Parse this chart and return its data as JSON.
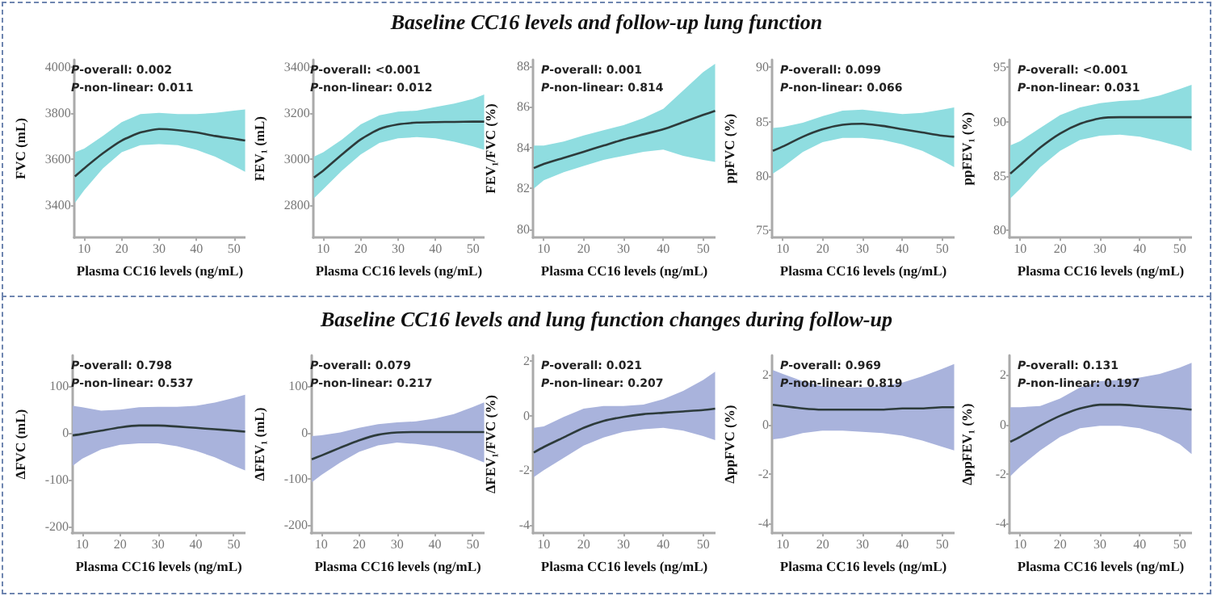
{
  "chart_data": [
    {
      "type": "line",
      "xlabel": "Plasma CC16 levels (ng/mL)",
      "ylabel": "FVC (mL)",
      "annotations": [
        "P-overall: 0.002",
        "P-non-linear: 0.011"
      ],
      "x": [
        7.5,
        10,
        15,
        20,
        25,
        30,
        35,
        40,
        45,
        50,
        53
      ],
      "xlim": [
        7.3,
        53.1
      ],
      "xticks": [
        10,
        20,
        30,
        40,
        50
      ],
      "ylim": [
        3260,
        4030
      ],
      "yticks": [
        3400,
        3600,
        3800,
        4000
      ],
      "colors": [
        "#8fdde0"
      ],
      "series": [
        {
          "color": "#2d3b3b",
          "values": [
            3525,
            3560,
            3625,
            3680,
            3715,
            3730,
            3725,
            3715,
            3700,
            3688,
            3680
          ],
          "lower": [
            3410,
            3465,
            3560,
            3630,
            3660,
            3665,
            3660,
            3640,
            3610,
            3570,
            3545
          ],
          "upper": [
            3630,
            3645,
            3700,
            3760,
            3795,
            3800,
            3795,
            3795,
            3800,
            3810,
            3815
          ]
        }
      ]
    },
    {
      "type": "line",
      "xlabel": "Plasma CC16 levels (ng/mL)",
      "ylabel": "FEV₁ (mL)",
      "annotations": [
        "P-overall: <0.001",
        "P-non-linear: 0.012"
      ],
      "x": [
        7.5,
        10,
        15,
        20,
        25,
        30,
        35,
        40,
        45,
        50,
        53
      ],
      "xlim": [
        7.3,
        53.1
      ],
      "xticks": [
        10,
        20,
        30,
        40,
        50
      ],
      "ylim": [
        2660,
        3430
      ],
      "yticks": [
        2800,
        3000,
        3200,
        3400
      ],
      "colors": [
        "#8fdde0"
      ],
      "series": [
        {
          "color": "#2d3b3b",
          "values": [
            2920,
            2950,
            3020,
            3085,
            3130,
            3150,
            3158,
            3160,
            3161,
            3162,
            3162
          ],
          "lower": [
            2830,
            2870,
            2950,
            3020,
            3070,
            3090,
            3095,
            3090,
            3075,
            3055,
            3040
          ],
          "upper": [
            3010,
            3030,
            3085,
            3150,
            3190,
            3205,
            3210,
            3225,
            3240,
            3260,
            3280
          ]
        }
      ]
    },
    {
      "type": "line",
      "title": "Baseline CC16 levels and follow-up lung function",
      "xlabel": "Plasma CC16 levels (ng/mL)",
      "ylabel": "FEV₁/FVC (%)",
      "annotations": [
        "P-overall: 0.001",
        "P-non-linear: 0.814"
      ],
      "x": [
        7.5,
        10,
        15,
        20,
        25,
        30,
        35,
        40,
        45,
        50,
        53
      ],
      "xlim": [
        7.3,
        53.1
      ],
      "xticks": [
        10,
        20,
        30,
        40,
        50
      ],
      "ylim": [
        79.6,
        88.3
      ],
      "yticks": [
        80,
        82,
        84,
        86,
        88
      ],
      "colors": [
        "#8fdde0"
      ],
      "series": [
        {
          "color": "#2d3b3b",
          "values": [
            83.0,
            83.2,
            83.5,
            83.8,
            84.1,
            84.4,
            84.65,
            84.9,
            85.25,
            85.6,
            85.8
          ],
          "lower": [
            82.0,
            82.4,
            82.8,
            83.1,
            83.4,
            83.6,
            83.8,
            83.9,
            83.6,
            83.4,
            83.3
          ],
          "upper": [
            84.1,
            84.1,
            84.3,
            84.6,
            84.85,
            85.1,
            85.45,
            85.9,
            86.8,
            87.7,
            88.1
          ]
        }
      ]
    },
    {
      "type": "line",
      "xlabel": "Plasma CC16 levels (ng/mL)",
      "ylabel": "ppFVC (%)",
      "annotations": [
        "P-overall: 0.099",
        "P-non-linear: 0.066"
      ],
      "x": [
        7.5,
        10,
        15,
        20,
        25,
        30,
        35,
        40,
        45,
        50,
        53
      ],
      "xlim": [
        7.3,
        53.1
      ],
      "xticks": [
        10,
        20,
        30,
        40,
        50
      ],
      "ylim": [
        74.3,
        90.7
      ],
      "yticks": [
        75,
        80,
        85,
        90
      ],
      "colors": [
        "#8fdde0"
      ],
      "series": [
        {
          "color": "#2d3b3b",
          "values": [
            82.3,
            82.7,
            83.6,
            84.3,
            84.7,
            84.8,
            84.6,
            84.3,
            84.0,
            83.7,
            83.6
          ],
          "lower": [
            80.2,
            80.8,
            82.2,
            83.1,
            83.5,
            83.5,
            83.3,
            82.9,
            82.3,
            81.4,
            80.8
          ],
          "upper": [
            84.4,
            84.5,
            84.9,
            85.5,
            86.0,
            86.1,
            85.9,
            85.7,
            85.8,
            86.1,
            86.3
          ]
        }
      ]
    },
    {
      "type": "line",
      "xlabel": "Plasma CC16 levels (ng/mL)",
      "ylabel": "ppFEV₁ (%)",
      "annotations": [
        "P-overall: <0.001",
        "P-non-linear: 0.031"
      ],
      "x": [
        7.5,
        10,
        15,
        20,
        25,
        30,
        35,
        40,
        45,
        50,
        53
      ],
      "xlim": [
        7.3,
        53.1
      ],
      "xticks": [
        10,
        20,
        30,
        40,
        50
      ],
      "ylim": [
        79.3,
        95.7
      ],
      "yticks": [
        80,
        85,
        90,
        95
      ],
      "colors": [
        "#8fdde0"
      ],
      "series": [
        {
          "color": "#2d3b3b",
          "values": [
            85.2,
            86.0,
            87.6,
            88.9,
            89.8,
            90.3,
            90.4,
            90.4,
            90.4,
            90.4,
            90.4
          ],
          "lower": [
            82.9,
            83.8,
            85.8,
            87.3,
            88.3,
            88.7,
            88.8,
            88.6,
            88.2,
            87.7,
            87.3
          ],
          "upper": [
            87.8,
            88.2,
            89.4,
            90.6,
            91.3,
            91.7,
            91.9,
            92.0,
            92.4,
            93.0,
            93.4
          ]
        }
      ]
    },
    {
      "type": "line",
      "xlabel": "Plasma CC16 levels (ng/mL)",
      "ylabel": "ΔFVC (mL)",
      "annotations": [
        "P-overall: 0.798",
        "P-non-linear: 0.537"
      ],
      "x": [
        7.5,
        10,
        15,
        20,
        25,
        30,
        35,
        40,
        45,
        50,
        53
      ],
      "xlim": [
        7.3,
        53.1
      ],
      "xticks": [
        10,
        20,
        30,
        40,
        50
      ],
      "ylim": [
        -214,
        166
      ],
      "yticks": [
        -200,
        -100,
        0,
        100
      ],
      "colors": [
        "#a9b3dc"
      ],
      "series": [
        {
          "color": "#2d3b3b",
          "values": [
            -5,
            -2,
            5,
            12,
            16,
            16,
            14,
            11,
            8,
            5,
            3
          ],
          "lower": [
            -70,
            -55,
            -35,
            -25,
            -22,
            -22,
            -28,
            -38,
            -52,
            -70,
            -80
          ],
          "upper": [
            58,
            55,
            48,
            50,
            55,
            56,
            56,
            58,
            65,
            75,
            82
          ]
        }
      ]
    },
    {
      "type": "line",
      "xlabel": "Plasma CC16 levels (ng/mL)",
      "ylabel": "ΔFEV₁ (mL)",
      "annotations": [
        "P-overall: 0.079",
        "P-non-linear: 0.217"
      ],
      "x": [
        7.5,
        10,
        15,
        20,
        25,
        30,
        35,
        40,
        45,
        50,
        53
      ],
      "xlim": [
        7.3,
        53.1
      ],
      "xticks": [
        10,
        20,
        30,
        40,
        50
      ],
      "ylim": [
        -218,
        167
      ],
      "yticks": [
        -200,
        -100,
        0,
        100
      ],
      "colors": [
        "#a9b3dc"
      ],
      "series": [
        {
          "color": "#2d3b3b",
          "values": [
            -58,
            -50,
            -33,
            -17,
            -5,
            0,
            1,
            1,
            1,
            1,
            1
          ],
          "lower": [
            -108,
            -92,
            -65,
            -42,
            -28,
            -22,
            -25,
            -30,
            -40,
            -55,
            -65
          ],
          "upper": [
            -8,
            -6,
            0,
            10,
            18,
            22,
            24,
            30,
            40,
            55,
            65
          ]
        }
      ]
    },
    {
      "type": "line",
      "title": "Baseline CC16 levels and lung function changes during follow-up",
      "xlabel": "Plasma CC16 levels (ng/mL)",
      "ylabel": "ΔFEV₁/FVC (%)",
      "annotations": [
        "P-overall: 0.021",
        "P-non-linear: 0.207"
      ],
      "x": [
        7.5,
        10,
        15,
        20,
        25,
        30,
        35,
        40,
        45,
        50,
        53
      ],
      "xlim": [
        7.3,
        53.1
      ],
      "xticks": [
        10,
        20,
        30,
        40,
        50
      ],
      "ylim": [
        -4.3,
        2.2
      ],
      "yticks": [
        -4,
        -2,
        0,
        2
      ],
      "colors": [
        "#a9b3dc"
      ],
      "series": [
        {
          "color": "#2d3b3b",
          "values": [
            -1.35,
            -1.15,
            -0.8,
            -0.45,
            -0.2,
            -0.05,
            0.05,
            0.1,
            0.15,
            0.2,
            0.25
          ],
          "lower": [
            -2.25,
            -2.0,
            -1.55,
            -1.1,
            -0.8,
            -0.6,
            -0.5,
            -0.45,
            -0.55,
            -0.75,
            -0.9
          ],
          "upper": [
            -0.45,
            -0.4,
            -0.05,
            0.25,
            0.35,
            0.35,
            0.4,
            0.6,
            0.9,
            1.3,
            1.6
          ]
        }
      ]
    },
    {
      "type": "line",
      "xlabel": "Plasma CC16 levels (ng/mL)",
      "ylabel": "ΔppFVC (%)",
      "annotations": [
        "P-overall: 0.969",
        "P-non-linear: 0.819"
      ],
      "x": [
        7.5,
        10,
        15,
        20,
        25,
        30,
        35,
        40,
        45,
        50,
        53
      ],
      "xlim": [
        7.3,
        53.1
      ],
      "xticks": [
        10,
        20,
        30,
        40,
        50
      ],
      "ylim": [
        -4.4,
        2.8
      ],
      "yticks": [
        -4,
        -2,
        0,
        2
      ],
      "colors": [
        "#a9b3dc"
      ],
      "series": [
        {
          "color": "#2d3b3b",
          "values": [
            0.8,
            0.75,
            0.65,
            0.6,
            0.6,
            0.6,
            0.6,
            0.65,
            0.65,
            0.7,
            0.7
          ],
          "lower": [
            -0.6,
            -0.55,
            -0.35,
            -0.25,
            -0.25,
            -0.3,
            -0.35,
            -0.45,
            -0.65,
            -0.9,
            -1.05
          ],
          "upper": [
            2.2,
            2.05,
            1.75,
            1.55,
            1.5,
            1.5,
            1.55,
            1.7,
            1.95,
            2.25,
            2.45
          ]
        }
      ]
    },
    {
      "type": "line",
      "xlabel": "Plasma CC16 levels (ng/mL)",
      "ylabel": "ΔppFEV₁ (%)",
      "annotations": [
        "P-overall: 0.131",
        "P-non-linear: 0.197"
      ],
      "x": [
        7.5,
        10,
        15,
        20,
        25,
        30,
        35,
        40,
        45,
        50,
        53
      ],
      "xlim": [
        7.3,
        53.1
      ],
      "xticks": [
        10,
        20,
        30,
        40,
        50
      ],
      "ylim": [
        -4.4,
        2.8
      ],
      "yticks": [
        -4,
        -2,
        0,
        2
      ],
      "colors": [
        "#a9b3dc"
      ],
      "series": [
        {
          "color": "#2d3b3b",
          "values": [
            -0.7,
            -0.5,
            -0.05,
            0.35,
            0.65,
            0.8,
            0.8,
            0.75,
            0.7,
            0.65,
            0.6
          ],
          "lower": [
            -2.1,
            -1.7,
            -1.05,
            -0.5,
            -0.15,
            -0.05,
            -0.05,
            -0.15,
            -0.4,
            -0.8,
            -1.2
          ],
          "upper": [
            0.7,
            0.7,
            0.75,
            1.05,
            1.5,
            1.75,
            1.8,
            1.9,
            2.05,
            2.3,
            2.5
          ]
        }
      ]
    }
  ]
}
